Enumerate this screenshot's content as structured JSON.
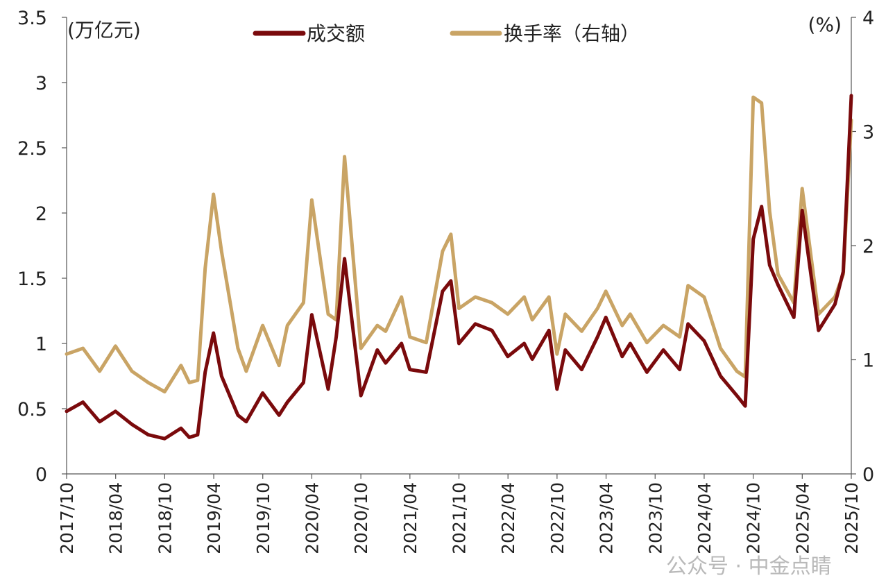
{
  "chart_data": {
    "type": "line",
    "left_axis": {
      "unit": "(万亿元)",
      "ylim": [
        0,
        3.5
      ],
      "ticks": [
        "0",
        "0.5",
        "1",
        "1.5",
        "2",
        "2.5",
        "3",
        "3.5"
      ]
    },
    "right_axis": {
      "unit": "(%)",
      "ylim": [
        0,
        4
      ],
      "ticks": [
        "0",
        "1",
        "2",
        "3",
        "4"
      ]
    },
    "x_tick_labels": [
      "2017/10",
      "2018/04",
      "2018/10",
      "2019/04",
      "2019/10",
      "2020/04",
      "2020/10",
      "2021/04",
      "2021/10",
      "2022/04",
      "2022/10",
      "2023/04",
      "2023/10",
      "2024/04",
      "2024/10",
      "2025/04",
      "2025/10"
    ],
    "legend_position": "top-center",
    "grid": false,
    "x": [
      "2017-10",
      "2017-12",
      "2018-02",
      "2018-04",
      "2018-06",
      "2018-08",
      "2018-10",
      "2018-12",
      "2019-01",
      "2019-02",
      "2019-03",
      "2019-04",
      "2019-05",
      "2019-07",
      "2019-08",
      "2019-10",
      "2019-12",
      "2020-01",
      "2020-03",
      "2020-04",
      "2020-06",
      "2020-07",
      "2020-08",
      "2020-10",
      "2020-12",
      "2021-01",
      "2021-03",
      "2021-04",
      "2021-06",
      "2021-08",
      "2021-09",
      "2021-10",
      "2021-12",
      "2022-02",
      "2022-04",
      "2022-06",
      "2022-07",
      "2022-09",
      "2022-10",
      "2022-11",
      "2023-01",
      "2023-03",
      "2023-04",
      "2023-06",
      "2023-07",
      "2023-09",
      "2023-11",
      "2024-01",
      "2024-02",
      "2024-04",
      "2024-06",
      "2024-08",
      "2024-09",
      "2024-10",
      "2024-11",
      "2024-12",
      "2025-01",
      "2025-03",
      "2025-04",
      "2025-06",
      "2025-08",
      "2025-09",
      "2025-10"
    ],
    "series": [
      {
        "name": "成交额",
        "axis": "left",
        "color": "#7a0a0c",
        "values": [
          0.48,
          0.55,
          0.4,
          0.48,
          0.38,
          0.3,
          0.27,
          0.35,
          0.28,
          0.3,
          0.78,
          1.08,
          0.75,
          0.45,
          0.4,
          0.62,
          0.45,
          0.55,
          0.7,
          1.22,
          0.65,
          1.05,
          1.65,
          0.6,
          0.95,
          0.85,
          1.0,
          0.8,
          0.78,
          1.4,
          1.48,
          1.0,
          1.15,
          1.1,
          0.9,
          1.0,
          0.88,
          1.1,
          0.65,
          0.95,
          0.8,
          1.05,
          1.2,
          0.9,
          1.0,
          0.78,
          0.95,
          0.8,
          1.15,
          1.02,
          0.75,
          0.6,
          0.52,
          1.8,
          2.05,
          1.6,
          1.45,
          1.2,
          2.02,
          1.1,
          1.3,
          1.55,
          2.9
        ]
      },
      {
        "name": "换手率（右轴）",
        "axis": "right",
        "color": "#c9a465",
        "values": [
          1.05,
          1.1,
          0.9,
          1.12,
          0.9,
          0.8,
          0.72,
          0.95,
          0.8,
          0.82,
          1.8,
          2.45,
          1.95,
          1.1,
          0.9,
          1.3,
          0.95,
          1.3,
          1.5,
          2.4,
          1.4,
          1.35,
          2.78,
          1.1,
          1.3,
          1.25,
          1.55,
          1.2,
          1.15,
          1.95,
          2.1,
          1.45,
          1.55,
          1.5,
          1.4,
          1.55,
          1.35,
          1.55,
          1.05,
          1.4,
          1.25,
          1.45,
          1.6,
          1.3,
          1.4,
          1.15,
          1.3,
          1.2,
          1.65,
          1.55,
          1.1,
          0.9,
          0.85,
          3.3,
          3.25,
          2.3,
          1.75,
          1.5,
          2.5,
          1.4,
          1.55,
          1.75,
          3.1
        ]
      }
    ]
  },
  "watermark": "公众号 · 中金点睛"
}
